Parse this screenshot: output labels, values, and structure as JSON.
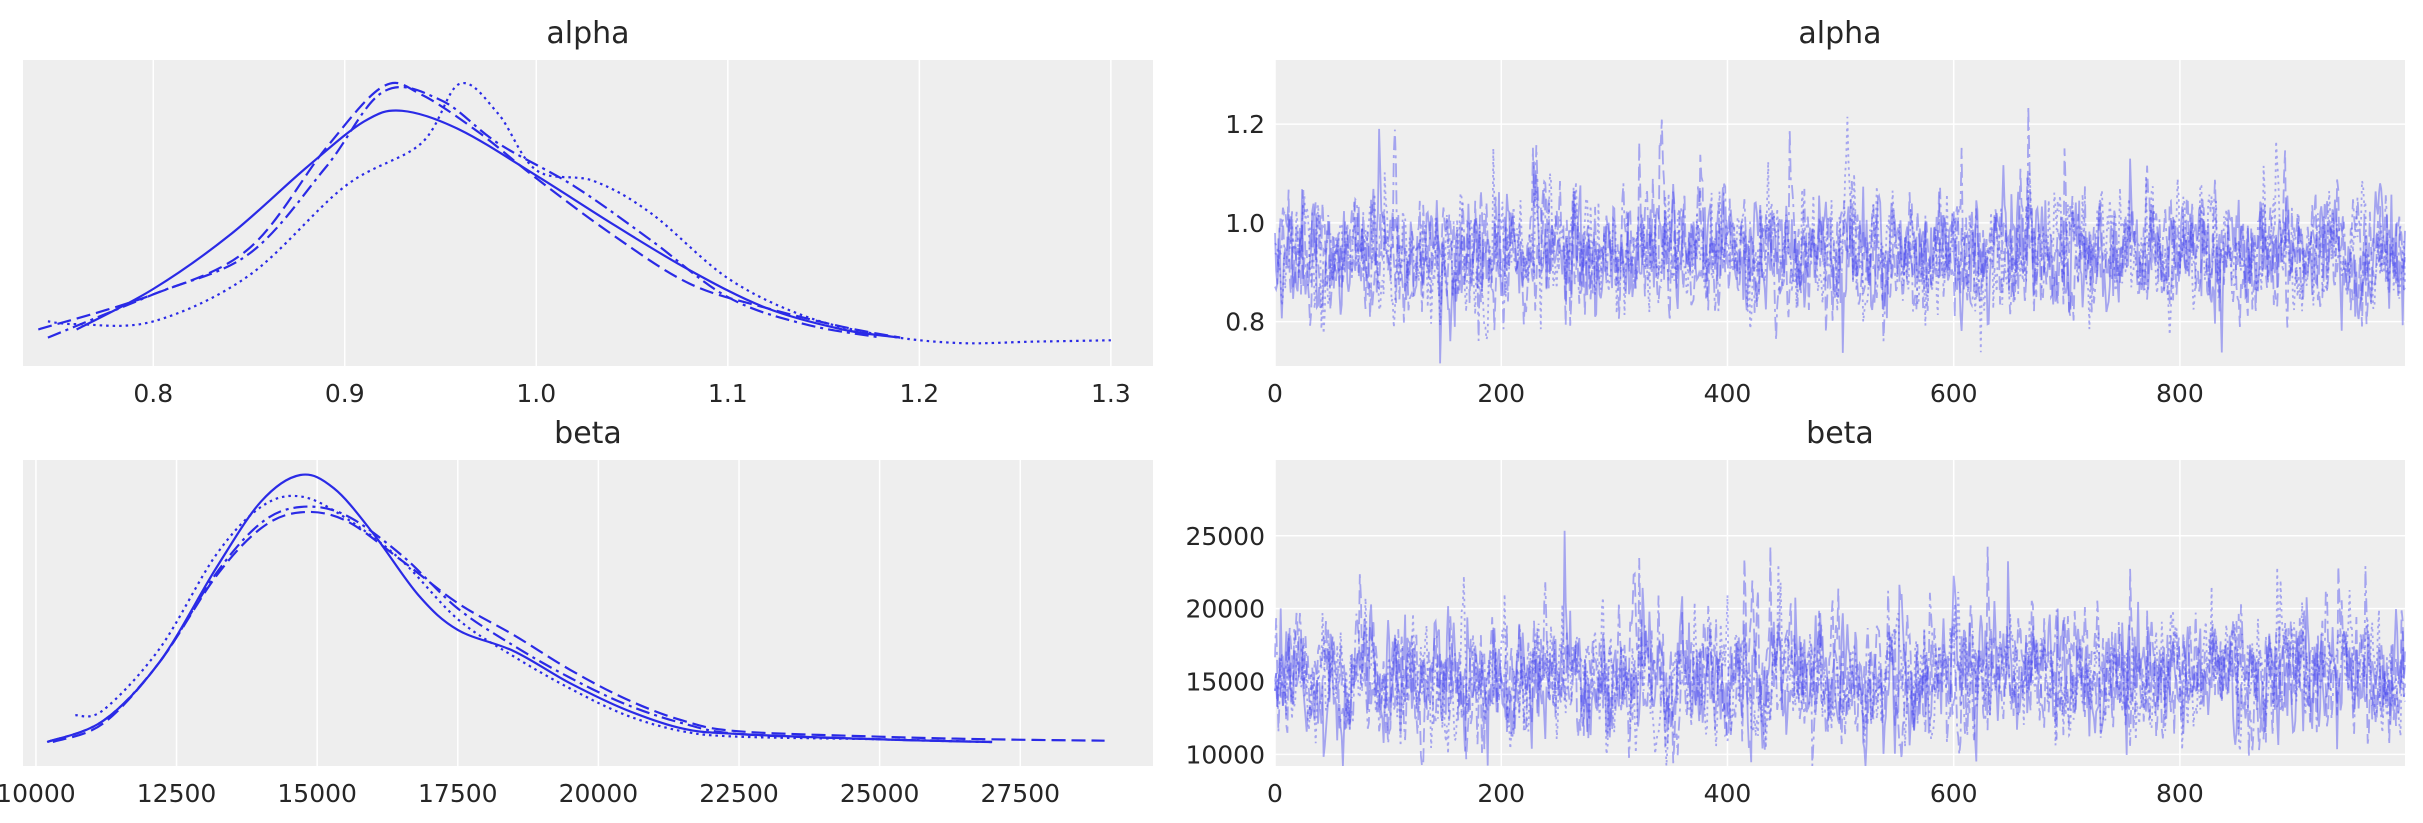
{
  "chart_data": [
    {
      "type": "line",
      "title": "alpha",
      "xlabel": "",
      "ylabel": "",
      "xlim": [
        0.732,
        1.322
      ],
      "xticks": [
        "0.8",
        "0.9",
        "1.0",
        "1.1",
        "1.2",
        "1.3"
      ],
      "yticks": [],
      "grid": true,
      "series": [
        {
          "linestyle": "solid",
          "x": [
            0.76,
            0.8,
            0.84,
            0.88,
            0.91,
            0.93,
            0.96,
            1.0,
            1.04,
            1.08,
            1.12,
            1.16,
            1.19
          ],
          "y": [
            0.05,
            0.2,
            0.4,
            0.65,
            0.82,
            0.86,
            0.79,
            0.62,
            0.44,
            0.27,
            0.13,
            0.05,
            0.02
          ]
        },
        {
          "linestyle": "dashed",
          "x": [
            0.74,
            0.8,
            0.85,
            0.89,
            0.92,
            0.94,
            0.97,
            1.0,
            1.04,
            1.08,
            1.12,
            1.16,
            1.19
          ],
          "y": [
            0.05,
            0.18,
            0.35,
            0.72,
            0.95,
            0.92,
            0.78,
            0.61,
            0.4,
            0.22,
            0.13,
            0.06,
            0.02
          ]
        },
        {
          "linestyle": "dashdot",
          "x": [
            0.745,
            0.8,
            0.85,
            0.89,
            0.92,
            0.95,
            0.98,
            1.02,
            1.06,
            1.1,
            1.14,
            1.18
          ],
          "y": [
            0.02,
            0.18,
            0.33,
            0.65,
            0.93,
            0.9,
            0.74,
            0.58,
            0.38,
            0.17,
            0.07,
            0.02
          ]
        },
        {
          "linestyle": "dotted",
          "x": [
            0.745,
            0.76,
            0.8,
            0.85,
            0.9,
            0.94,
            0.96,
            0.98,
            1.0,
            1.03,
            1.06,
            1.1,
            1.14,
            1.18,
            1.22,
            1.26,
            1.3
          ],
          "y": [
            0.08,
            0.07,
            0.08,
            0.25,
            0.58,
            0.74,
            0.96,
            0.85,
            0.64,
            0.6,
            0.48,
            0.24,
            0.1,
            0.03,
            0.0,
            0.005,
            0.01
          ]
        }
      ]
    },
    {
      "type": "line",
      "title": "alpha",
      "xlabel": "",
      "ylabel": "",
      "xlim": [
        0,
        999
      ],
      "ylim": [
        0.71,
        1.33
      ],
      "xticks": [
        "0",
        "200",
        "400",
        "600",
        "800"
      ],
      "yticks": [
        "0.8",
        "1.0",
        "1.2"
      ],
      "grid": true,
      "series_count": 4,
      "draws": 1000,
      "center": 0.94,
      "spread": 0.06
    },
    {
      "type": "line",
      "title": "beta",
      "xlabel": "",
      "ylabel": "",
      "xlim": [
        9770,
        29860
      ],
      "xticks": [
        "10000",
        "12500",
        "15000",
        "17500",
        "20000",
        "22500",
        "25000",
        "27500"
      ],
      "yticks": [],
      "grid": true,
      "series": [
        {
          "linestyle": "solid",
          "x": [
            10200,
            11200,
            12200,
            13200,
            14000,
            14700,
            15300,
            16000,
            16800,
            17500,
            18500,
            19500,
            20500,
            21500,
            22500,
            25000,
            27000
          ],
          "y": [
            0.0,
            0.08,
            0.3,
            0.65,
            0.9,
            1.0,
            0.95,
            0.78,
            0.55,
            0.42,
            0.34,
            0.22,
            0.12,
            0.05,
            0.03,
            0.01,
            0.0
          ]
        },
        {
          "linestyle": "dashed",
          "x": [
            10300,
            11200,
            12200,
            13200,
            14000,
            14700,
            15500,
            16500,
            17500,
            18500,
            19500,
            20500,
            21500,
            22500,
            25000,
            27000,
            29000
          ],
          "y": [
            0.0,
            0.07,
            0.3,
            0.62,
            0.8,
            0.86,
            0.83,
            0.68,
            0.52,
            0.4,
            0.27,
            0.16,
            0.08,
            0.04,
            0.02,
            0.01,
            0.005
          ]
        },
        {
          "linestyle": "dashdot",
          "x": [
            10200,
            11200,
            12200,
            13200,
            14000,
            14700,
            15500,
            16500,
            17500,
            18500,
            19500,
            20500,
            21500,
            22500,
            25000,
            27000
          ],
          "y": [
            0.0,
            0.08,
            0.3,
            0.63,
            0.82,
            0.88,
            0.85,
            0.7,
            0.5,
            0.36,
            0.24,
            0.14,
            0.07,
            0.03,
            0.01,
            0.0
          ]
        },
        {
          "linestyle": "dotted",
          "x": [
            10700,
            11200,
            12200,
            13200,
            14000,
            14700,
            15500,
            16500,
            17500,
            18500,
            19500,
            20500,
            21500,
            22500,
            25000,
            27000
          ],
          "y": [
            0.1,
            0.12,
            0.35,
            0.7,
            0.88,
            0.92,
            0.84,
            0.68,
            0.46,
            0.32,
            0.2,
            0.1,
            0.04,
            0.02,
            0.01,
            0.0
          ]
        }
      ]
    },
    {
      "type": "line",
      "title": "beta",
      "xlabel": "",
      "ylabel": "",
      "xlim": [
        0,
        999
      ],
      "ylim": [
        9200,
        30200
      ],
      "xticks": [
        "0",
        "200",
        "400",
        "600",
        "800"
      ],
      "yticks": [
        "10000",
        "15000",
        "20000",
        "25000"
      ],
      "grid": true,
      "series_count": 4,
      "draws": 1000,
      "center": 15200,
      "spread": 2100
    }
  ],
  "colors": {
    "line": "#2a2ae6",
    "trace": "#4a4af0",
    "panel_bg": "#eeeeee",
    "grid": "#ffffff",
    "text": "#262626"
  }
}
